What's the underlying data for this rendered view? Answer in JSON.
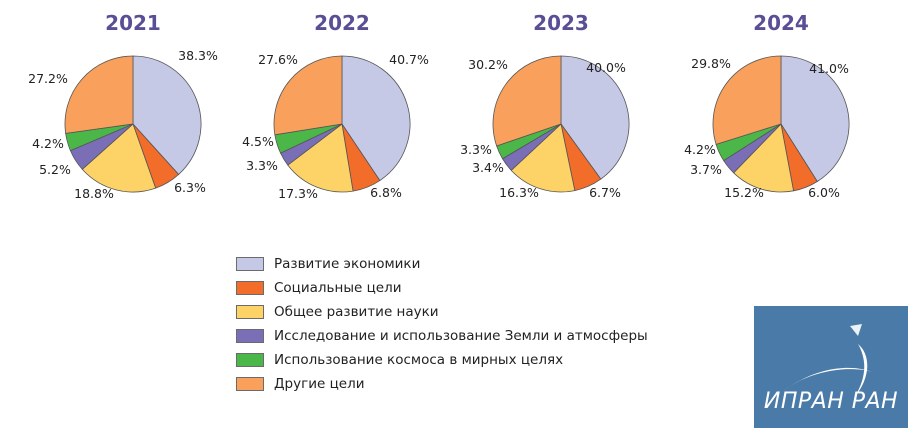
{
  "chart_data": {
    "type": "pie",
    "categories": [
      "Развитие экономики",
      "Социальные цели",
      "Общее развитие науки",
      "Исследование и использование Земли и атмосферы",
      "Использование космоса в мирных целях",
      "Другие цели"
    ],
    "colors": [
      "#c5c9e6",
      "#f26c2a",
      "#fdd367",
      "#7a6fb6",
      "#4bb748",
      "#f9a05c"
    ],
    "title_color": "#5a4e96",
    "unit": "%",
    "pies": [
      {
        "title": "2021",
        "values": [
          38.3,
          6.3,
          18.8,
          5.2,
          4.2,
          27.2
        ],
        "labels": [
          "38.3%",
          "6.3%",
          "18.8%",
          "5.2%",
          "4.2%",
          "27.2%"
        ]
      },
      {
        "title": "2022",
        "values": [
          40.7,
          6.8,
          17.3,
          3.3,
          4.5,
          27.6
        ],
        "labels": [
          "40.7%",
          "6.8%",
          "17.3%",
          "3.3%",
          "4.5%",
          "27.6%"
        ]
      },
      {
        "title": "2023",
        "values": [
          40.0,
          6.7,
          16.3,
          3.4,
          3.3,
          30.2
        ],
        "labels": [
          "40.0%",
          "6.7%",
          "16.3%",
          "3.4%",
          "3.3%",
          "30.2%"
        ]
      },
      {
        "title": "2024",
        "values": [
          41.0,
          6.0,
          15.2,
          3.7,
          4.2,
          29.8
        ],
        "labels": [
          "41.0%",
          "6.0%",
          "15.2%",
          "3.7%",
          "4.2%",
          "29.8%"
        ]
      }
    ],
    "legend": {
      "placement": "bottom-center"
    }
  },
  "logo": {
    "text": "ИПРАН РАН",
    "color": "#4a7ba8"
  }
}
